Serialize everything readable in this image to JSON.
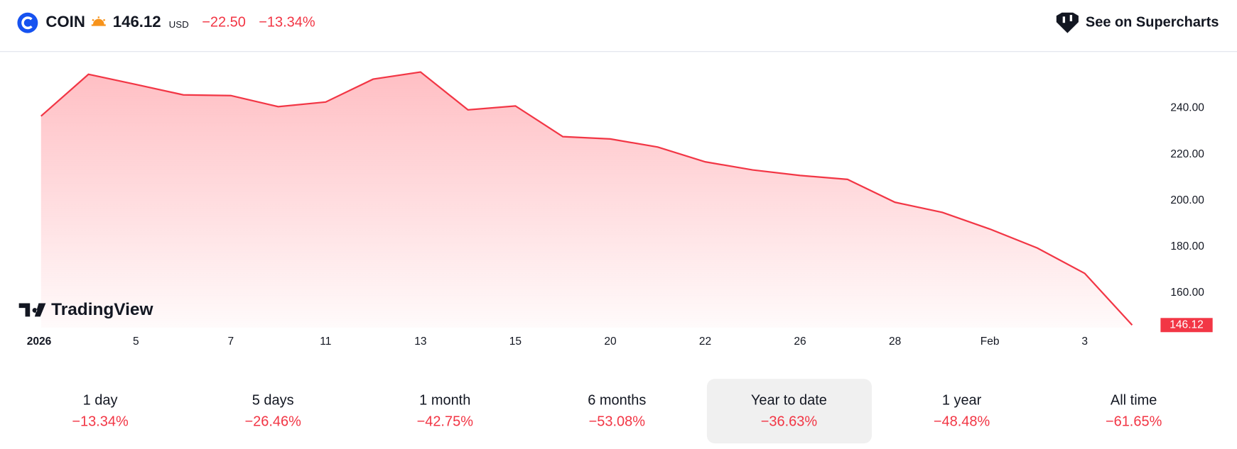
{
  "header": {
    "symbol": "COIN",
    "price": "146.12",
    "currency": "USD",
    "change": "−22.50",
    "change_percent": "−13.34%",
    "link": "See on Supercharts"
  },
  "chart_data": {
    "type": "area",
    "watermark": "TradingView",
    "categories": [
      "2026",
      null,
      "5",
      null,
      "7",
      null,
      "11",
      null,
      "13",
      null,
      "15",
      null,
      "20",
      null,
      "22",
      null,
      "26",
      null,
      "28",
      null,
      "Feb",
      null,
      "3",
      null
    ],
    "values": [
      236.6,
      254.7,
      250.3,
      245.8,
      245.5,
      240.7,
      242.7,
      252.6,
      255.7,
      239.3,
      241.0,
      227.7,
      226.7,
      223.2,
      216.8,
      213.3,
      210.9,
      209.2,
      199.3,
      194.9,
      187.7,
      179.5,
      168.5,
      146.12
    ],
    "value_labels": [
      null,
      null,
      null,
      null,
      null,
      null,
      null,
      null,
      null,
      null,
      null,
      null,
      null,
      null,
      null,
      null,
      null,
      null,
      null,
      null,
      null,
      null,
      null,
      "146.12"
    ],
    "color": "#f23645",
    "ylim": [
      145,
      263
    ],
    "yticks": [
      {
        "value": 160,
        "label": "160.00"
      },
      {
        "value": 180,
        "label": "180.00"
      },
      {
        "value": 200,
        "label": "200.00"
      },
      {
        "value": 220,
        "label": "220.00"
      },
      {
        "value": 240,
        "label": "240.00"
      }
    ],
    "grid": false
  },
  "periods": [
    {
      "label": "1 day",
      "change": "−13.34%",
      "selected": false
    },
    {
      "label": "5 days",
      "change": "−26.46%",
      "selected": false
    },
    {
      "label": "1 month",
      "change": "−42.75%",
      "selected": false
    },
    {
      "label": "6 months",
      "change": "−53.08%",
      "selected": false
    },
    {
      "label": "Year to date",
      "change": "−36.63%",
      "selected": true
    },
    {
      "label": "1 year",
      "change": "−48.48%",
      "selected": false
    },
    {
      "label": "All time",
      "change": "−61.65%",
      "selected": false
    }
  ]
}
